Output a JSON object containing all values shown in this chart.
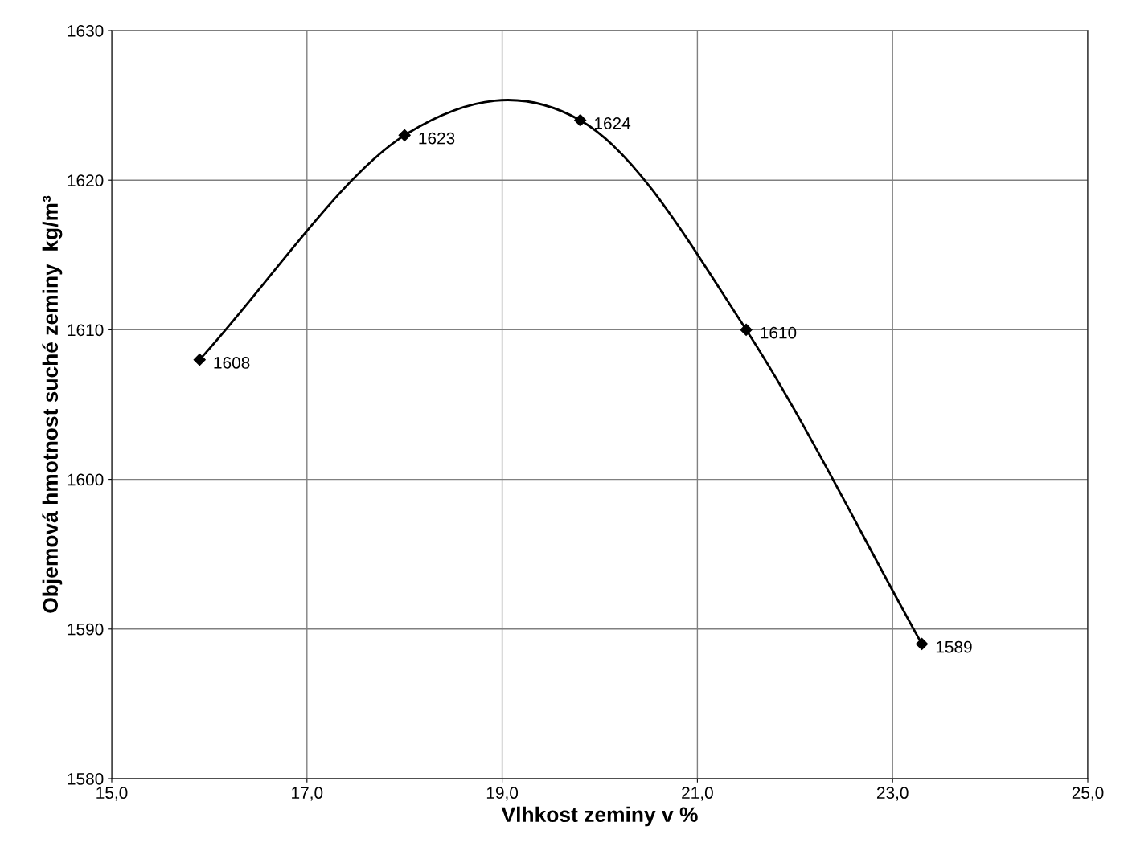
{
  "chart_data": {
    "type": "line",
    "xlabel": "Vlhkost zeminy v %",
    "ylabel": "Objemová hmotnost suché zeminy  kg/m³",
    "x": [
      15.9,
      18.0,
      19.8,
      21.5,
      23.3
    ],
    "series": [
      {
        "color": "#000000",
        "values": [
          1608,
          1623,
          1624,
          1610,
          1589
        ]
      }
    ],
    "marker": "diamond",
    "line_style": "solid",
    "data_labels": true,
    "grid": true,
    "xlim": [
      15,
      25
    ],
    "xticks": [
      {
        "value": 15,
        "label": "15,0"
      },
      {
        "value": 17,
        "label": "17,0"
      },
      {
        "value": 19,
        "label": "19,0"
      },
      {
        "value": 21,
        "label": "21,0"
      },
      {
        "value": 23,
        "label": "23,0"
      },
      {
        "value": 25,
        "label": "25,0"
      }
    ],
    "ylim": [
      1580,
      1630
    ],
    "yticks": [
      1580,
      1590,
      1600,
      1610,
      1620,
      1630
    ]
  }
}
